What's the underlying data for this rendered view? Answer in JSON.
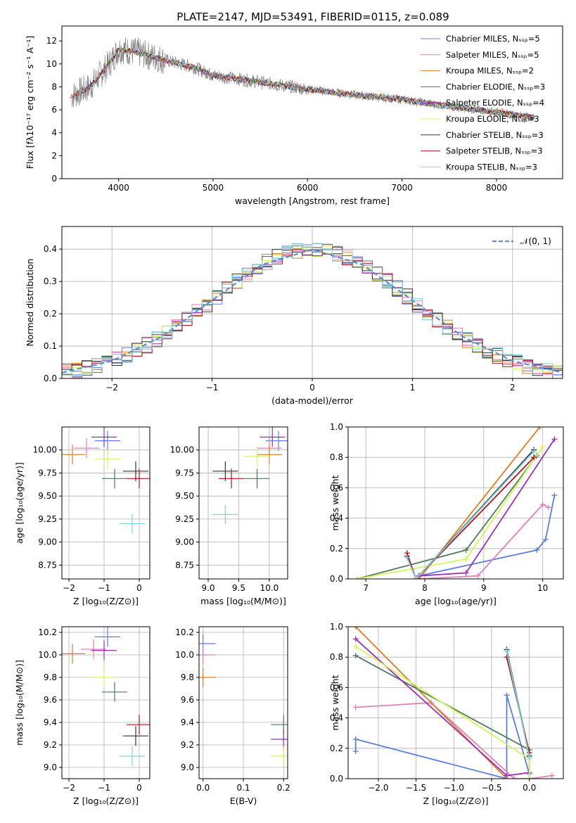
{
  "title": "PLATE=2147, MJD=53491, FIBERID=0115, z=0.089",
  "colors": {
    "Chabrier MILES": "#5b7fde",
    "Salpeter MILES": "#e27fb6",
    "Kroupa MILES": "#e07b26",
    "Chabrier ELODIE": "#4e7a5a",
    "Salpeter ELODIE": "#9b2fb3",
    "Kroupa ELODIE": "#d4f55c",
    "Chabrier STELIB": "#333333",
    "Salpeter STELIB": "#b0141a",
    "Kroupa STELIB": "#7fd3e0",
    "data": "#808080",
    "normal": "#5a8fd6"
  },
  "chart_data": [
    {
      "type": "line",
      "xlabel": "wavelength [Angstrom, rest frame]",
      "ylabel": "Flux [fλ10⁻¹⁷ erg cm⁻² s⁻¹ A⁻¹]",
      "xlim": [
        3400,
        8700
      ],
      "ylim": [
        0,
        13.3
      ],
      "xticks": [
        4000,
        5000,
        6000,
        7000,
        8000
      ],
      "yticks": [
        0,
        2,
        4,
        6,
        8,
        10,
        12
      ],
      "legend_position": "top-right",
      "legend": [
        "Chabrier MILES, Nₛₛₚ=5",
        "Salpeter MILES, Nₛₛₚ=5",
        "Kroupa MILES, Nₛₛₚ=2",
        "Chabrier ELODIE, Nₛₛₚ=3",
        "Salpeter ELODIE, Nₛₛₚ=4",
        "Kroupa ELODIE, Nₛₛₚ=3",
        "Chabrier STELIB, Nₛₛₚ=3",
        "Salpeter STELIB, Nₛₛₚ=3",
        "Kroupa STELIB, Nₛₛₚ=3"
      ],
      "x": [
        3500,
        3700,
        3900,
        4000,
        4200,
        4500,
        4800,
        5000,
        5500,
        6000,
        6500,
        7000,
        7500,
        8000,
        8400
      ],
      "y": [
        7.2,
        8.0,
        10.0,
        11.3,
        11.0,
        10.3,
        9.7,
        9.0,
        8.4,
        7.8,
        7.3,
        6.9,
        6.3,
        5.8,
        5.3
      ]
    },
    {
      "type": "line",
      "xlabel": "(data-model)/error",
      "ylabel": "Normed distribution",
      "xlim": [
        -2.5,
        2.5
      ],
      "ylim": [
        0,
        0.47
      ],
      "xticks": [
        -2,
        -1,
        0,
        1,
        2
      ],
      "yticks": [
        0.0,
        0.1,
        0.2,
        0.3,
        0.4
      ],
      "legend": [
        "𝒩(0, 1)"
      ],
      "legend_position": "top-right",
      "series": [
        {
          "name": "𝒩(0, 1)",
          "x": [
            -2.5,
            -2.0,
            -1.5,
            -1.0,
            -0.5,
            0.0,
            0.5,
            1.0,
            1.5,
            2.0,
            2.5
          ],
          "y": [
            0.018,
            0.054,
            0.13,
            0.242,
            0.352,
            0.399,
            0.352,
            0.242,
            0.13,
            0.054,
            0.018
          ]
        }
      ]
    },
    {
      "type": "scatter",
      "xlabel": "Z [log₁₀(Z/Z⊙)]",
      "ylabel": "age  [log₁₀(age/yr)]",
      "xlim": [
        -2.2,
        0.3
      ],
      "ylim": [
        8.6,
        10.25
      ],
      "xticks": [
        -2,
        -1,
        0
      ],
      "yticks": [
        8.75,
        9.0,
        9.25,
        9.5,
        9.75,
        10.0
      ],
      "points": [
        {
          "x": -0.9,
          "y": 10.1
        },
        {
          "x": -1.5,
          "y": 10.02
        },
        {
          "x": -1.9,
          "y": 9.95
        },
        {
          "x": -0.7,
          "y": 9.69
        },
        {
          "x": -1.0,
          "y": 10.14
        },
        {
          "x": -0.9,
          "y": 9.9
        },
        {
          "x": -0.1,
          "y": 9.77
        },
        {
          "x": 0.0,
          "y": 9.69
        },
        {
          "x": -0.2,
          "y": 9.2
        }
      ]
    },
    {
      "type": "scatter",
      "xlabel": "mass [log₁₀(M/M⊙)]",
      "xlim": [
        8.85,
        10.3
      ],
      "ylim": [
        8.6,
        10.25
      ],
      "xticks": [
        9.0,
        9.5,
        10.0
      ],
      "yticks": [
        8.75,
        9.0,
        9.25,
        9.5,
        9.75,
        10.0
      ],
      "points": [
        {
          "x": 10.15,
          "y": 10.1
        },
        {
          "x": 10.0,
          "y": 10.02
        },
        {
          "x": 10.0,
          "y": 9.95
        },
        {
          "x": 9.8,
          "y": 9.69
        },
        {
          "x": 10.05,
          "y": 10.14
        },
        {
          "x": 9.8,
          "y": 9.93
        },
        {
          "x": 9.28,
          "y": 9.77
        },
        {
          "x": 9.38,
          "y": 9.69
        },
        {
          "x": 9.28,
          "y": 9.3
        }
      ]
    },
    {
      "type": "line",
      "xlabel": "age  [log₁₀(age/yr)]",
      "ylabel": "mass weight",
      "xlim": [
        6.7,
        10.35
      ],
      "ylim": [
        0,
        1
      ],
      "xticks": [
        7,
        8,
        9,
        10
      ],
      "yticks": [
        0.0,
        0.2,
        0.4,
        0.6,
        0.8,
        1.0
      ],
      "series": [
        {
          "name": "Chabrier MILES",
          "x": [
            7.9,
            9.9,
            10.05,
            10.2
          ],
          "y": [
            0.02,
            0.19,
            0.26,
            0.55
          ]
        },
        {
          "name": "Salpeter MILES",
          "x": [
            7.9,
            8.9,
            10.0,
            10.1
          ],
          "y": [
            0.0,
            0.02,
            0.49,
            0.47
          ]
        },
        {
          "name": "Kroupa MILES",
          "x": [
            7.9,
            9.95
          ],
          "y": [
            0.0,
            1.0
          ]
        },
        {
          "name": "Chabrier ELODIE",
          "x": [
            6.85,
            8.7,
            9.9
          ],
          "y": [
            0.0,
            0.19,
            0.81
          ]
        },
        {
          "name": "Salpeter ELODIE",
          "x": [
            7.9,
            8.7,
            10.2
          ],
          "y": [
            0.02,
            0.04,
            0.92
          ]
        },
        {
          "name": "Kroupa ELODIE",
          "x": [
            6.85,
            8.7,
            10.0
          ],
          "y": [
            0.0,
            0.13,
            0.87
          ]
        },
        {
          "name": "Chabrier STELIB",
          "x": [
            7.7,
            7.85,
            9.85
          ],
          "y": [
            0.15,
            0.0,
            0.85
          ]
        },
        {
          "name": "Salpeter STELIB",
          "x": [
            7.7,
            7.85,
            9.85
          ],
          "y": [
            0.17,
            0.0,
            0.8
          ]
        },
        {
          "name": "Kroupa STELIB",
          "x": [
            7.7,
            7.85,
            9.85
          ],
          "y": [
            0.14,
            0.0,
            0.84
          ]
        }
      ]
    },
    {
      "type": "scatter",
      "xlabel": "Z [log₁₀(Z/Z⊙)]",
      "ylabel": "mass [log₁₀(M/M⊙)]",
      "xlim": [
        -2.2,
        0.3
      ],
      "ylim": [
        8.9,
        10.25
      ],
      "xticks": [
        -2,
        -1,
        0
      ],
      "yticks": [
        9.0,
        9.2,
        9.4,
        9.6,
        9.8,
        10.0,
        10.2
      ],
      "points": [
        {
          "x": -0.9,
          "y": 10.16
        },
        {
          "x": -1.3,
          "y": 10.05
        },
        {
          "x": -1.9,
          "y": 10.01
        },
        {
          "x": -0.7,
          "y": 9.67
        },
        {
          "x": -1.0,
          "y": 10.04
        },
        {
          "x": -1.0,
          "y": 9.8
        },
        {
          "x": -0.1,
          "y": 9.28
        },
        {
          "x": 0.0,
          "y": 9.38
        },
        {
          "x": -0.2,
          "y": 9.1
        }
      ]
    },
    {
      "type": "scatter",
      "xlabel": "E(B-V)",
      "xlim": [
        -0.01,
        0.21
      ],
      "ylim": [
        8.9,
        10.25
      ],
      "xticks": [
        0.0,
        0.1,
        0.2
      ],
      "yticks": [
        9.0,
        9.2,
        9.4,
        9.6,
        9.8,
        10.0,
        10.2
      ],
      "points": [
        {
          "x": 0.0,
          "y": 10.1
        },
        {
          "x": 0.0,
          "y": 10.0
        },
        {
          "x": 0.0,
          "y": 9.8
        },
        {
          "x": 0.2,
          "y": 9.38
        },
        {
          "x": 0.2,
          "y": 9.25
        },
        {
          "x": 0.2,
          "y": 9.1
        }
      ]
    },
    {
      "type": "line",
      "xlabel": "Z [log₁₀(Z/Z⊙)]",
      "ylabel": "mass weight",
      "xlim": [
        -2.4,
        0.45
      ],
      "ylim": [
        0,
        1
      ],
      "xticks": [
        -2.0,
        -1.5,
        -1.0,
        -0.5,
        0.0
      ],
      "yticks": [
        0.0,
        0.2,
        0.4,
        0.6,
        0.8,
        1.0
      ],
      "series": [
        {
          "name": "Chabrier MILES",
          "x": [
            -2.3,
            -2.3,
            -0.3,
            -0.3,
            0.0
          ],
          "y": [
            0.18,
            0.26,
            0.0,
            0.55,
            0.03
          ]
        },
        {
          "name": "Salpeter MILES",
          "x": [
            -2.3,
            -1.3,
            -0.2,
            0.0,
            0.3
          ],
          "y": [
            0.47,
            0.5,
            0.0,
            0.0,
            0.02
          ]
        },
        {
          "name": "Kroupa MILES",
          "x": [
            -2.3,
            -0.3
          ],
          "y": [
            1.0,
            0.0
          ]
        },
        {
          "name": "Chabrier ELODIE",
          "x": [
            -2.3,
            0.0,
            0.0
          ],
          "y": [
            0.81,
            0.19,
            0.0
          ]
        },
        {
          "name": "Salpeter ELODIE",
          "x": [
            -2.3,
            -0.3,
            0.0
          ],
          "y": [
            0.92,
            0.02,
            0.04
          ]
        },
        {
          "name": "Kroupa ELODIE",
          "x": [
            -2.3,
            0.0,
            0.0
          ],
          "y": [
            0.87,
            0.13,
            0.0
          ]
        },
        {
          "name": "Chabrier STELIB",
          "x": [
            -0.3,
            0.0
          ],
          "y": [
            0.85,
            0.15
          ]
        },
        {
          "name": "Salpeter STELIB",
          "x": [
            -0.3,
            0.0
          ],
          "y": [
            0.8,
            0.17
          ]
        },
        {
          "name": "Kroupa STELIB",
          "x": [
            -0.3,
            0.0
          ],
          "y": [
            0.84,
            0.14
          ]
        }
      ]
    }
  ]
}
